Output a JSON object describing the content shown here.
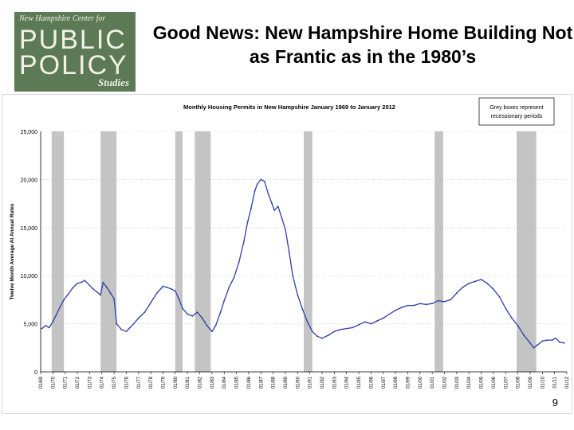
{
  "logo": {
    "line1": "New Hampshire Center for",
    "word1": "PUBLIC",
    "word2": "POLICY",
    "word3": "Studies"
  },
  "slide": {
    "title": "Good News: New Hampshire Home Building Not as Frantic as in the 1980’s",
    "number": "9"
  },
  "chart_data": {
    "type": "line",
    "title": "Monthly Housing Permits in New Hampshire January 1969 to January 2012",
    "ylabel": "Twelve Month Average At Annual Rates",
    "xlabel": "",
    "ylim": [
      0,
      25000
    ],
    "xlim": [
      1969.0,
      2012.0
    ],
    "yticks": [
      0,
      5000,
      10000,
      15000,
      20000,
      25000
    ],
    "ytick_labels": [
      "0",
      "5,000",
      "10,000",
      "15,000",
      "20,000",
      "25,000"
    ],
    "xtick_labels": [
      "01/69",
      "01/70",
      "01/71",
      "01/72",
      "01/73",
      "01/74",
      "01/75",
      "01/76",
      "01/77",
      "01/78",
      "01/79",
      "01/80",
      "01/81",
      "01/82",
      "01/83",
      "01/84",
      "01/85",
      "01/86",
      "01/87",
      "01/88",
      "01/89",
      "01/90",
      "01/91",
      "01/92",
      "01/93",
      "01/94",
      "01/95",
      "01/96",
      "01/97",
      "01/98",
      "01/99",
      "01/00",
      "01/01",
      "01/02",
      "01/03",
      "01/04",
      "01/05",
      "01/06",
      "01/07",
      "01/08",
      "01/09",
      "01/10",
      "01/11",
      "01/12"
    ],
    "note": "Grey boxes represent recessionary periods",
    "recessions": [
      [
        1969.9,
        1970.9
      ],
      [
        1973.9,
        1975.2
      ],
      [
        1980.0,
        1980.6
      ],
      [
        1981.6,
        1982.9
      ],
      [
        1990.5,
        1991.2
      ],
      [
        2001.2,
        2001.9
      ],
      [
        2007.9,
        2009.5
      ]
    ],
    "series": [
      {
        "name": "",
        "color": "#2f3fa8",
        "x": [
          1969.1,
          1969.4,
          1969.7,
          1970.0,
          1970.3,
          1970.6,
          1970.9,
          1971.2,
          1971.6,
          1972.0,
          1972.3,
          1972.6,
          1973.0,
          1973.3,
          1973.6,
          1973.9,
          1974.1,
          1974.4,
          1974.7,
          1975.0,
          1975.2,
          1975.6,
          1976.0,
          1976.3,
          1976.6,
          1977.0,
          1977.5,
          1978.0,
          1978.5,
          1979.0,
          1979.3,
          1979.7,
          1980.0,
          1980.3,
          1980.6,
          1981.0,
          1981.4,
          1981.8,
          1982.2,
          1982.6,
          1983.0,
          1983.3,
          1983.7,
          1984.0,
          1984.4,
          1984.8,
          1985.2,
          1985.6,
          1985.9,
          1986.2,
          1986.5,
          1986.7,
          1987.0,
          1987.3,
          1987.6,
          1987.9,
          1988.1,
          1988.4,
          1988.7,
          1989.0,
          1989.3,
          1989.6,
          1990.0,
          1990.4,
          1990.8,
          1991.2,
          1991.6,
          1992.0,
          1992.5,
          1993.0,
          1993.5,
          1994.0,
          1994.5,
          1995.0,
          1995.5,
          1996.0,
          1996.5,
          1997.0,
          1997.5,
          1998.0,
          1998.5,
          1999.0,
          1999.5,
          2000.0,
          2000.5,
          2001.0,
          2001.5,
          2002.0,
          2002.5,
          2003.0,
          2003.5,
          2004.0,
          2004.5,
          2005.0,
          2005.5,
          2006.0,
          2006.5,
          2007.0,
          2007.5,
          2008.0,
          2008.5,
          2009.0,
          2009.3,
          2009.6,
          2010.0,
          2010.4,
          2010.8,
          2011.1,
          2011.4,
          2011.8
        ],
        "values": [
          4500,
          4800,
          4600,
          5200,
          6000,
          6800,
          7500,
          8000,
          8700,
          9200,
          9300,
          9500,
          9000,
          8600,
          8300,
          8000,
          9300,
          8800,
          8200,
          7600,
          5000,
          4400,
          4200,
          4600,
          5000,
          5600,
          6200,
          7200,
          8200,
          8900,
          8800,
          8600,
          8400,
          7600,
          6600,
          6000,
          5800,
          6200,
          5600,
          4800,
          4200,
          4800,
          6200,
          7400,
          8800,
          9800,
          11400,
          13500,
          15500,
          17000,
          18800,
          19500,
          20000,
          19800,
          18500,
          17500,
          16800,
          17200,
          16000,
          14800,
          12500,
          10000,
          8000,
          6500,
          5200,
          4200,
          3700,
          3500,
          3800,
          4200,
          4400,
          4500,
          4600,
          4900,
          5200,
          5000,
          5300,
          5600,
          6000,
          6400,
          6700,
          6900,
          6900,
          7100,
          7000,
          7100,
          7400,
          7300,
          7500,
          8200,
          8800,
          9200,
          9400,
          9600,
          9200,
          8600,
          7800,
          6600,
          5600,
          4800,
          3800,
          3000,
          2500,
          2800,
          3200,
          3300,
          3300,
          3500,
          3100,
          3000
        ]
      }
    ]
  }
}
